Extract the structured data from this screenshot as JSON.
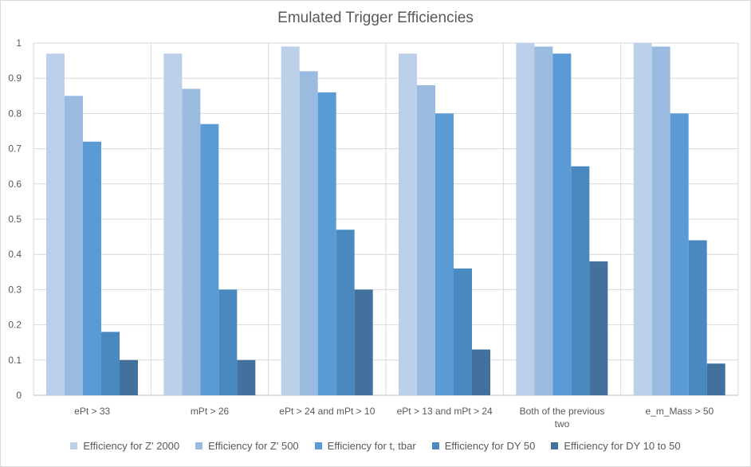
{
  "chart_data": {
    "type": "bar",
    "title": "Emulated Trigger Efficiencies",
    "xlabel": "",
    "ylabel": "",
    "ylim": [
      0,
      1
    ],
    "yticks": [
      "0",
      "0.1",
      "0.2",
      "0.3",
      "0.4",
      "0.5",
      "0.6",
      "0.7",
      "0.8",
      "0.9",
      "1"
    ],
    "grid": true,
    "legend_position": "bottom",
    "categories": [
      [
        "ePt > 33"
      ],
      [
        "mPt > 26"
      ],
      [
        "ePt > 24 and mPt > 10"
      ],
      [
        "ePt > 13 and mPt > 24"
      ],
      [
        "Both of the previous",
        "two"
      ],
      [
        "e_m_Mass > 50"
      ]
    ],
    "series": [
      {
        "name": "Efficiency for Z' 2000",
        "color": "#bdd0ea",
        "values": [
          0.97,
          0.97,
          0.99,
          0.97,
          1.0,
          1.0
        ]
      },
      {
        "name": "Efficiency for Z' 500",
        "color": "#9bbae0",
        "values": [
          0.85,
          0.87,
          0.92,
          0.88,
          0.99,
          0.99
        ]
      },
      {
        "name": "Efficiency for t, tbar",
        "color": "#5b9bd5",
        "values": [
          0.72,
          0.77,
          0.86,
          0.8,
          0.97,
          0.8
        ]
      },
      {
        "name": "Efficiency for DY 50",
        "color": "#4a89bf",
        "values": [
          0.18,
          0.3,
          0.47,
          0.36,
          0.65,
          0.44
        ]
      },
      {
        "name": "Efficiency for DY 10 to 50",
        "color": "#41719c",
        "values": [
          0.1,
          0.1,
          0.3,
          0.13,
          0.38,
          0.09
        ]
      }
    ]
  }
}
